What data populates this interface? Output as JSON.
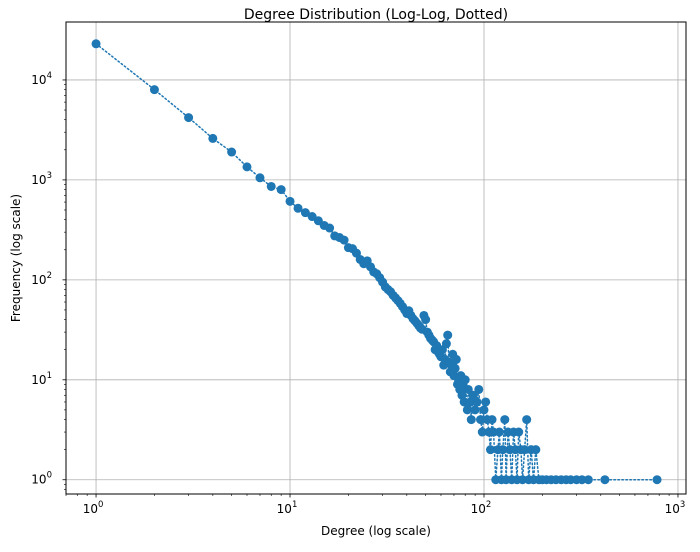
{
  "chart_data": {
    "type": "line",
    "title": "Degree Distribution (Log-Log, Dotted)",
    "xlabel": "Degree (log scale)",
    "ylabel": "Frequency (log scale)",
    "xscale": "log",
    "yscale": "log",
    "xlim": [
      0.7,
      1100
    ],
    "ylim": [
      0.72,
      38000
    ],
    "grid": true,
    "marker": "circle",
    "line_style": "dotted",
    "color": "#1f77b4",
    "x_ticks": [
      {
        "base": "10",
        "exp": "0",
        "value": 1
      },
      {
        "base": "10",
        "exp": "1",
        "value": 10
      },
      {
        "base": "10",
        "exp": "2",
        "value": 100
      },
      {
        "base": "10",
        "exp": "3",
        "value": 1000
      }
    ],
    "y_ticks": [
      {
        "base": "10",
        "exp": "0",
        "value": 1
      },
      {
        "base": "10",
        "exp": "1",
        "value": 10
      },
      {
        "base": "10",
        "exp": "2",
        "value": 100
      },
      {
        "base": "10",
        "exp": "3",
        "value": 1000
      },
      {
        "base": "10",
        "exp": "4",
        "value": 10000
      }
    ],
    "series": [
      {
        "points": [
          [
            1,
            23000
          ],
          [
            2,
            8000
          ],
          [
            3,
            4200
          ],
          [
            4,
            2600
          ],
          [
            5,
            1900
          ],
          [
            6,
            1350
          ],
          [
            7,
            1050
          ],
          [
            8,
            860
          ],
          [
            9,
            800
          ],
          [
            10,
            610
          ],
          [
            11,
            520
          ],
          [
            12,
            470
          ],
          [
            13,
            430
          ],
          [
            14,
            390
          ],
          [
            15,
            350
          ],
          [
            16,
            330
          ],
          [
            17,
            275
          ],
          [
            18,
            265
          ],
          [
            19,
            250
          ],
          [
            20,
            210
          ],
          [
            21,
            205
          ],
          [
            22,
            185
          ],
          [
            23,
            160
          ],
          [
            24,
            145
          ],
          [
            25,
            155
          ],
          [
            26,
            135
          ],
          [
            27,
            120
          ],
          [
            28,
            115
          ],
          [
            29,
            105
          ],
          [
            30,
            95
          ],
          [
            31,
            85
          ],
          [
            32,
            80
          ],
          [
            33,
            76
          ],
          [
            34,
            70
          ],
          [
            35,
            66
          ],
          [
            36,
            62
          ],
          [
            37,
            58
          ],
          [
            38,
            54
          ],
          [
            39,
            50
          ],
          [
            40,
            46
          ],
          [
            41,
            49
          ],
          [
            42,
            44
          ],
          [
            43,
            41
          ],
          [
            44,
            39
          ],
          [
            45,
            37
          ],
          [
            46,
            35
          ],
          [
            47,
            33
          ],
          [
            48,
            32
          ],
          [
            49,
            44
          ],
          [
            50,
            40
          ],
          [
            51,
            30
          ],
          [
            52,
            28
          ],
          [
            53,
            26
          ],
          [
            54,
            25
          ],
          [
            55,
            24
          ],
          [
            56,
            20
          ],
          [
            57,
            22
          ],
          [
            58,
            19
          ],
          [
            59,
            18
          ],
          [
            60,
            17
          ],
          [
            61,
            20
          ],
          [
            62,
            14
          ],
          [
            63,
            16
          ],
          [
            64,
            23
          ],
          [
            65,
            28
          ],
          [
            66,
            15
          ],
          [
            67,
            12
          ],
          [
            68,
            14
          ],
          [
            69,
            18
          ],
          [
            70,
            11
          ],
          [
            71,
            13
          ],
          [
            72,
            16
          ],
          [
            73,
            9
          ],
          [
            74,
            10
          ],
          [
            75,
            8
          ],
          [
            76,
            11
          ],
          [
            77,
            7
          ],
          [
            78,
            9
          ],
          [
            79,
            6
          ],
          [
            80,
            10
          ],
          [
            82,
            5
          ],
          [
            83,
            8
          ],
          [
            85,
            6
          ],
          [
            86,
            4
          ],
          [
            88,
            7
          ],
          [
            90,
            5
          ],
          [
            92,
            6
          ],
          [
            94,
            8
          ],
          [
            96,
            4
          ],
          [
            98,
            3
          ],
          [
            100,
            5
          ],
          [
            102,
            6
          ],
          [
            104,
            4
          ],
          [
            106,
            3
          ],
          [
            108,
            2
          ],
          [
            110,
            4
          ],
          [
            112,
            3
          ],
          [
            115,
            1
          ],
          [
            118,
            2
          ],
          [
            120,
            3
          ],
          [
            123,
            1
          ],
          [
            125,
            2
          ],
          [
            128,
            4
          ],
          [
            130,
            1
          ],
          [
            133,
            3
          ],
          [
            136,
            2
          ],
          [
            139,
            1
          ],
          [
            142,
            3
          ],
          [
            145,
            2
          ],
          [
            148,
            1
          ],
          [
            151,
            3
          ],
          [
            155,
            2
          ],
          [
            158,
            1
          ],
          [
            162,
            2
          ],
          [
            166,
            4
          ],
          [
            170,
            1
          ],
          [
            175,
            2
          ],
          [
            180,
            1
          ],
          [
            185,
            2
          ],
          [
            192,
            1
          ],
          [
            200,
            1
          ],
          [
            210,
            1
          ],
          [
            222,
            1
          ],
          [
            235,
            1
          ],
          [
            250,
            1
          ],
          [
            265,
            1
          ],
          [
            280,
            1
          ],
          [
            300,
            1
          ],
          [
            320,
            1
          ],
          [
            345,
            1
          ],
          [
            420,
            1
          ],
          [
            780,
            1
          ]
        ]
      }
    ]
  }
}
